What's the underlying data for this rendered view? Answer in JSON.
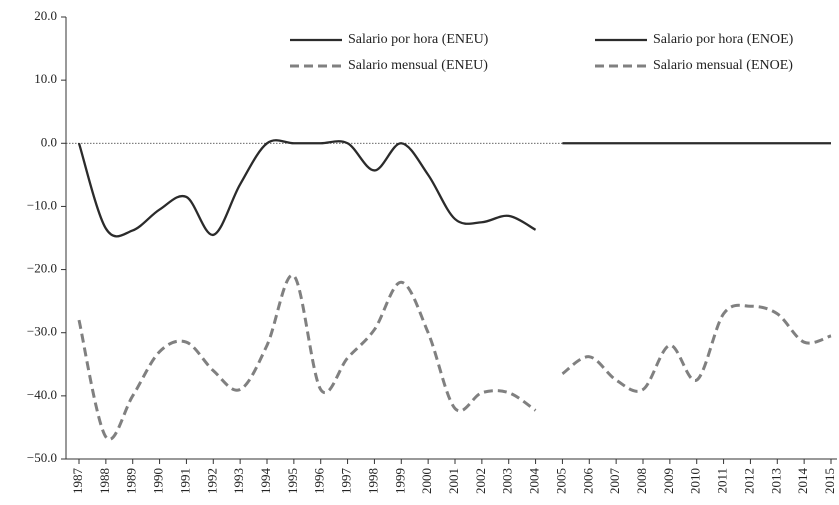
{
  "chart_data": {
    "type": "line",
    "categories": [
      "1987",
      "1988",
      "1989",
      "1990",
      "1991",
      "1992",
      "1993",
      "1994",
      "1995",
      "1996",
      "1997",
      "1998",
      "1999",
      "2000",
      "2001",
      "2002",
      "2003",
      "2004",
      "2005",
      "2006",
      "2007",
      "2008",
      "2009",
      "2010",
      "2011",
      "2012",
      "2013",
      "2014",
      "2015"
    ],
    "series": [
      {
        "name": "Salario por hora (ENEU)",
        "color": "#2b2b2b",
        "style": "solid",
        "values": [
          0,
          -13.5,
          -13.8,
          -10.5,
          -8.5,
          -14.5,
          -6.5,
          0,
          0,
          0,
          0,
          -4.3,
          0,
          -5,
          -12,
          -12.5,
          -11.5,
          -13.7,
          null,
          null,
          null,
          null,
          null,
          null,
          null,
          null,
          null,
          null,
          null
        ]
      },
      {
        "name": "Salario por hora (ENOE)",
        "color": "#2b2b2b",
        "style": "solid",
        "values": [
          null,
          null,
          null,
          null,
          null,
          null,
          null,
          null,
          null,
          null,
          null,
          null,
          null,
          null,
          null,
          null,
          null,
          null,
          0,
          0,
          0,
          0,
          0,
          0,
          0,
          0,
          0,
          0,
          0
        ]
      },
      {
        "name": "Salario mensual (ENEU)",
        "color": "#808080",
        "style": "dashed",
        "values": [
          -28,
          -46.5,
          -40,
          -33,
          -31.5,
          -36,
          -39,
          -32,
          -21,
          -39,
          -34,
          -29.5,
          -22,
          -30,
          -42,
          -39.5,
          -39.5,
          -42.3,
          null,
          null,
          null,
          null,
          null,
          null,
          null,
          null,
          null,
          null,
          null
        ]
      },
      {
        "name": "Salario mensual (ENOE)",
        "color": "#808080",
        "style": "dashed",
        "values": [
          null,
          null,
          null,
          null,
          null,
          null,
          null,
          null,
          null,
          null,
          null,
          null,
          null,
          null,
          null,
          null,
          null,
          null,
          -36.5,
          -33.8,
          -37.5,
          -39,
          -32,
          -37.5,
          -27,
          -25.8,
          -27,
          -31.5,
          -30.5
        ]
      }
    ],
    "ylim": [
      -50,
      20
    ],
    "yticks": [
      {
        "value": 20,
        "label": "20.0"
      },
      {
        "value": 10,
        "label": "10.0"
      },
      {
        "value": 0,
        "label": "0.0"
      },
      {
        "value": -10,
        "label": "−10.0"
      },
      {
        "value": -20,
        "label": "−20.0"
      },
      {
        "value": -30,
        "label": "−30.0"
      },
      {
        "value": -40,
        "label": "−40.0"
      },
      {
        "value": -50,
        "label": "−50.0"
      }
    ],
    "reference_line": 0
  }
}
